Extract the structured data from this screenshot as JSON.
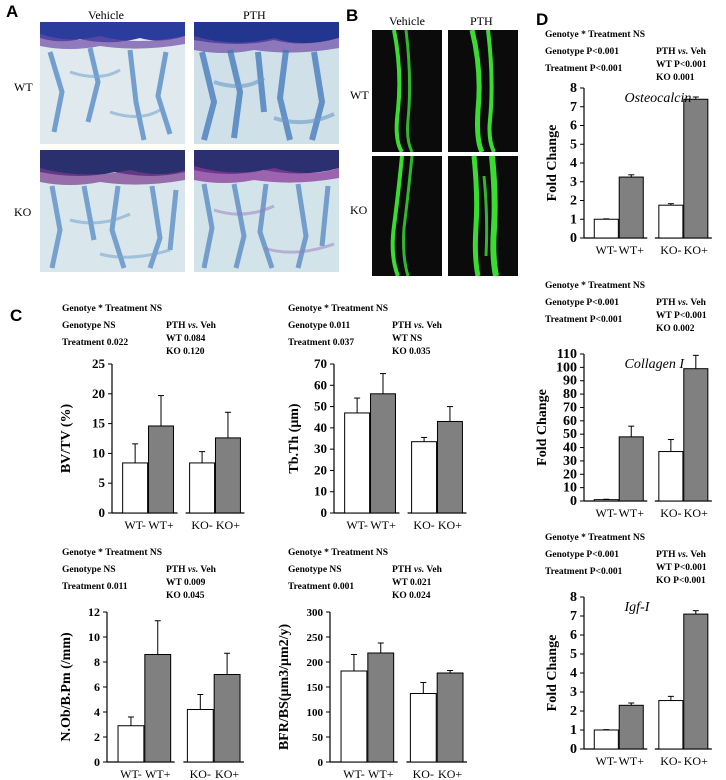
{
  "figure": {
    "panel_labels": {
      "a": "A",
      "b": "B",
      "c": "C",
      "d": "D"
    },
    "histology": {
      "col_vehicle": "Vehicle",
      "col_pth": "PTH",
      "row_wt": "WT",
      "row_ko": "KO"
    },
    "fluorescence": {
      "col_vehicle": "Vehicle",
      "col_pth": "PTH",
      "row_wt": "WT",
      "row_ko": "KO"
    }
  },
  "colors": {
    "white_bar": "#ffffff",
    "gray_bar": "#808080",
    "stain_blue": "#3a4fa8",
    "stain_purple": "#6a3a9a",
    "fluor_green": "#3bdc32"
  },
  "stats": {
    "bvtv": {
      "l1": "Genotye * Treatment   NS",
      "l2": "Genotype   NS",
      "l3": "Treatment  0.022",
      "r1a": "PTH ",
      "r1b": "vs.",
      "r1c": " Veh",
      "r2": "WT   0.084",
      "r3": "KO   0.120"
    },
    "tbth": {
      "l1": "Genotye * Treatment   NS",
      "l2": "Genotype   0.011",
      "l3": "Treatment  0.037",
      "r1a": "PTH ",
      "r1b": "vs.",
      "r1c": " Veh",
      "r2": "WT    NS",
      "r3": "KO    0.035"
    },
    "nob": {
      "l1": "Genotye * Treatment   NS",
      "l2": "Genotype   NS",
      "l3": "Treatment  0.011",
      "r1a": "PTH ",
      "r1b": "vs.",
      "r1c": " Veh",
      "r2": "WT  0.009",
      "r3": "KO   0.045"
    },
    "bfr": {
      "l1": "Genotye * Treatment   NS",
      "l2": "Genotype   NS",
      "l3": "Treatment  0.001",
      "r1a": "PTH ",
      "r1b": "vs.",
      "r1c": " Veh",
      "r2": "WT   0.021",
      "r3": "KO   0.024"
    },
    "ocn": {
      "l1": "Genotye * Treatment   NS",
      "l2": "Genotype   P<0.001",
      "l3": "Treatment  P<0.001",
      "r1a": "PTH ",
      "r1b": "vs.",
      "r1c": " Veh",
      "r2": "WT   P<0.001",
      "r3": "KO     0.001"
    },
    "col": {
      "l1": "Genotye * Treatment   NS",
      "l2": "Genotype   P<0.001",
      "l3": "Treatment  P<0.001",
      "r1a": "PTH ",
      "r1b": "vs.",
      "r1c": " Veh",
      "r2": "WT   P<0.001",
      "r3": "KO    0.002"
    },
    "igf": {
      "l1": "Genotye * Treatment   NS",
      "l2": "Genotype   P<0.001",
      "l3": "Treatment  P<0.001",
      "r1a": "PTH ",
      "r1b": "vs.",
      "r1c": " Veh",
      "r2": "WT   P<0.001",
      "r3": "KO   P<0.001"
    }
  },
  "chart_data": [
    {
      "id": "bvtv",
      "type": "bar",
      "categories": [
        "WT-",
        "WT+",
        "KO-",
        "KO+"
      ],
      "ylabel": "BV/TV (%)",
      "title": "",
      "ylim": [
        0,
        25
      ],
      "yticks": [
        0,
        5,
        10,
        15,
        20,
        25
      ],
      "values": [
        8.4,
        14.6,
        8.4,
        12.6
      ],
      "errors": [
        3.2,
        5.1,
        1.9,
        4.3
      ],
      "bar_colors": [
        "white",
        "gray",
        "white",
        "gray"
      ]
    },
    {
      "id": "tbth",
      "type": "bar",
      "categories": [
        "WT-",
        "WT+",
        "KO-",
        "KO+"
      ],
      "ylabel": "Tb.Th (μm)",
      "title": "",
      "ylim": [
        0,
        70
      ],
      "yticks": [
        0,
        10,
        20,
        30,
        40,
        50,
        60,
        70
      ],
      "values": [
        47,
        56,
        33.5,
        43
      ],
      "errors": [
        7,
        9.5,
        2,
        7
      ],
      "bar_colors": [
        "white",
        "gray",
        "white",
        "gray"
      ]
    },
    {
      "id": "nob",
      "type": "bar",
      "categories": [
        "WT-",
        "WT+",
        "KO-",
        "KO+"
      ],
      "ylabel": "N.Ob/B.Pm (/mm)",
      "title": "",
      "ylim": [
        0,
        12
      ],
      "yticks": [
        0,
        2,
        4,
        6,
        8,
        10,
        12
      ],
      "values": [
        2.9,
        8.6,
        4.2,
        7.0
      ],
      "errors": [
        0.7,
        2.7,
        1.2,
        1.7
      ],
      "bar_colors": [
        "white",
        "gray",
        "white",
        "gray"
      ]
    },
    {
      "id": "bfr",
      "type": "bar",
      "categories": [
        "WT-",
        "WT+",
        "KO-",
        "KO+"
      ],
      "ylabel": "BFR/BS(μm3/μm2/y)",
      "title": "",
      "ylim": [
        0,
        300
      ],
      "yticks": [
        0,
        50,
        100,
        150,
        200,
        250,
        300
      ],
      "values": [
        182,
        218,
        137,
        178
      ],
      "errors": [
        33,
        20,
        22,
        5
      ],
      "bar_colors": [
        "white",
        "gray",
        "white",
        "gray"
      ]
    },
    {
      "id": "ocn",
      "type": "bar",
      "categories": [
        "WT-",
        "WT+",
        "KO-",
        "KO+"
      ],
      "ylabel": "Fold Change",
      "title": "Osteocalcin",
      "ylim": [
        0,
        8
      ],
      "yticks": [
        0,
        1,
        2,
        3,
        4,
        5,
        6,
        7,
        8
      ],
      "values": [
        1.0,
        3.25,
        1.75,
        7.4
      ],
      "errors": [
        0.02,
        0.12,
        0.08,
        0.12
      ],
      "bar_colors": [
        "white",
        "gray",
        "white",
        "gray"
      ]
    },
    {
      "id": "col",
      "type": "bar",
      "categories": [
        "WT-",
        "WT+",
        "KO-",
        "KO+"
      ],
      "ylabel": "Fold Change",
      "title": "Collagen I",
      "ylim": [
        0,
        110
      ],
      "yticks": [
        0,
        10,
        20,
        30,
        40,
        50,
        60,
        70,
        80,
        90,
        100,
        110
      ],
      "values": [
        1,
        48,
        37,
        99
      ],
      "errors": [
        0.3,
        8,
        9,
        10
      ],
      "bar_colors": [
        "white",
        "gray",
        "white",
        "gray"
      ]
    },
    {
      "id": "igf",
      "type": "bar",
      "categories": [
        "WT-",
        "WT+",
        "KO-",
        "KO+"
      ],
      "ylabel": "Fold Change",
      "title": "Igf-I",
      "ylim": [
        0,
        8
      ],
      "yticks": [
        0,
        1,
        2,
        3,
        4,
        5,
        6,
        7,
        8
      ],
      "values": [
        1.0,
        2.3,
        2.55,
        7.1
      ],
      "errors": [
        0.02,
        0.12,
        0.22,
        0.18
      ],
      "bar_colors": [
        "white",
        "gray",
        "white",
        "gray"
      ]
    }
  ]
}
